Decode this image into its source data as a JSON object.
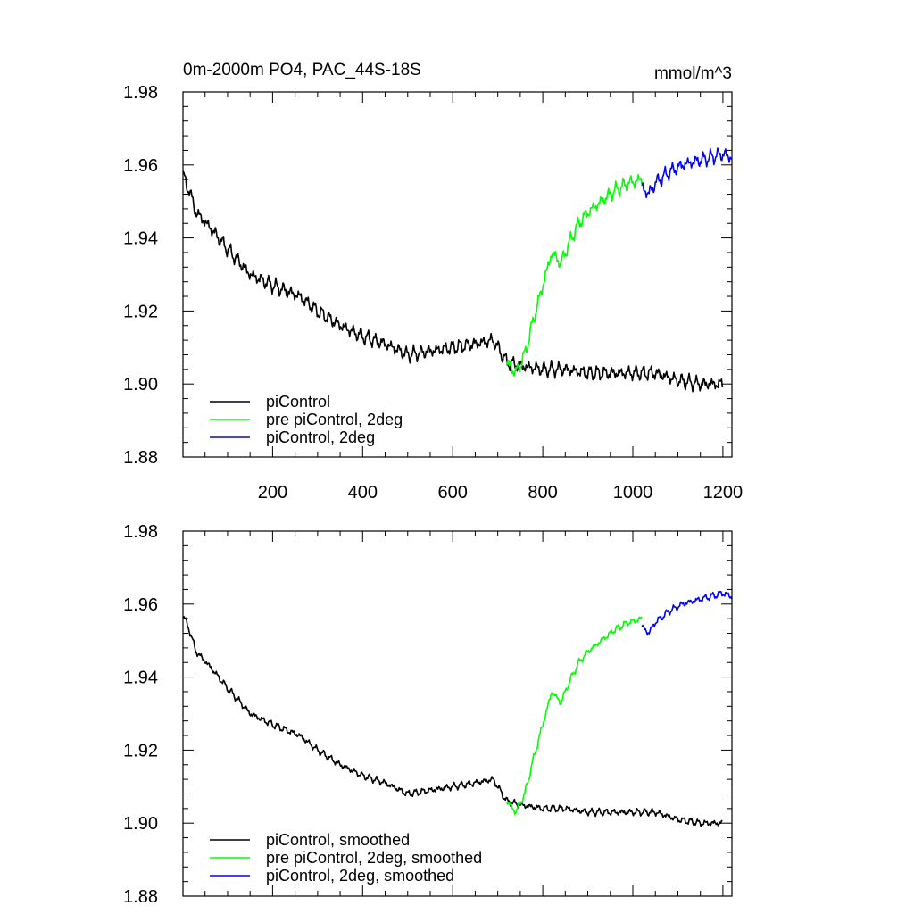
{
  "chart_data": [
    {
      "type": "line",
      "title": "0m-2000m PO4, PAC_44S-18S",
      "units": "mmol/m^3",
      "xlabel": "",
      "ylabel": "",
      "xlim": [
        1,
        1220
      ],
      "ylim": [
        1.88,
        1.98
      ],
      "x_ticks": [
        200,
        400,
        600,
        800,
        1000,
        1200
      ],
      "x_tick_labels": [
        "200",
        "400",
        "600",
        "800",
        "1000",
        "1200"
      ],
      "y_ticks": [
        1.88,
        1.9,
        1.92,
        1.94,
        1.96,
        1.98
      ],
      "y_tick_labels": [
        "1.88",
        "1.90",
        "1.92",
        "1.94",
        "1.96",
        "1.98"
      ],
      "legend_position": "bottom-left",
      "noise_amplitude": 0.0025,
      "series": [
        {
          "name": "piControl",
          "color": "#000000",
          "x_range": [
            1,
            1200
          ],
          "anchors": [
            [
              1,
              1.957
            ],
            [
              15,
              1.953
            ],
            [
              30,
              1.947
            ],
            [
              60,
              1.943
            ],
            [
              100,
              1.937
            ],
            [
              150,
              1.93
            ],
            [
              200,
              1.927
            ],
            [
              260,
              1.924
            ],
            [
              300,
              1.92
            ],
            [
              350,
              1.916
            ],
            [
              400,
              1.913
            ],
            [
              450,
              1.911
            ],
            [
              500,
              1.908
            ],
            [
              550,
              1.909
            ],
            [
              600,
              1.91
            ],
            [
              650,
              1.911
            ],
            [
              690,
              1.912
            ],
            [
              720,
              1.906
            ],
            [
              750,
              1.905
            ],
            [
              800,
              1.904
            ],
            [
              850,
              1.904
            ],
            [
              900,
              1.903
            ],
            [
              950,
              1.903
            ],
            [
              1000,
              1.903
            ],
            [
              1050,
              1.903
            ],
            [
              1100,
              1.901
            ],
            [
              1150,
              1.9
            ],
            [
              1200,
              1.9
            ]
          ]
        },
        {
          "name": "pre piControl, 2deg",
          "color": "#00ff00",
          "x_range": [
            720,
            1020
          ],
          "anchors": [
            [
              720,
              1.906
            ],
            [
              740,
              1.903
            ],
            [
              760,
              1.908
            ],
            [
              780,
              1.918
            ],
            [
              800,
              1.927
            ],
            [
              820,
              1.936
            ],
            [
              840,
              1.933
            ],
            [
              860,
              1.939
            ],
            [
              880,
              1.944
            ],
            [
              900,
              1.947
            ],
            [
              930,
              1.95
            ],
            [
              960,
              1.953
            ],
            [
              990,
              1.955
            ],
            [
              1020,
              1.956
            ]
          ]
        },
        {
          "name": "piControl, 2deg",
          "color": "#0000ff",
          "x_range": [
            1020,
            1220
          ],
          "anchors": [
            [
              1020,
              1.954
            ],
            [
              1035,
              1.952
            ],
            [
              1050,
              1.955
            ],
            [
              1080,
              1.958
            ],
            [
              1110,
              1.96
            ],
            [
              1140,
              1.961
            ],
            [
              1170,
              1.962
            ],
            [
              1200,
              1.963
            ],
            [
              1220,
              1.962
            ]
          ]
        }
      ]
    },
    {
      "type": "line",
      "title": "",
      "xlabel": "",
      "ylabel": "",
      "xlim": [
        1,
        1220
      ],
      "ylim": [
        1.88,
        1.98
      ],
      "x_ticks": [
        200,
        400,
        600,
        800,
        1000,
        1200
      ],
      "y_ticks": [
        1.88,
        1.9,
        1.92,
        1.94,
        1.96,
        1.98
      ],
      "y_tick_labels": [
        "1.88",
        "1.90",
        "1.92",
        "1.94",
        "1.96",
        "1.98"
      ],
      "legend_position": "bottom-left",
      "noise_amplitude": 0.0012,
      "series": [
        {
          "name": "piControl, smoothed",
          "color": "#000000",
          "x_range": [
            1,
            1200
          ],
          "anchors": [
            [
              1,
              1.957
            ],
            [
              15,
              1.953
            ],
            [
              30,
              1.947
            ],
            [
              60,
              1.943
            ],
            [
              100,
              1.937
            ],
            [
              150,
              1.93
            ],
            [
              200,
              1.927
            ],
            [
              260,
              1.924
            ],
            [
              300,
              1.92
            ],
            [
              350,
              1.916
            ],
            [
              400,
              1.913
            ],
            [
              450,
              1.911
            ],
            [
              500,
              1.908
            ],
            [
              550,
              1.909
            ],
            [
              600,
              1.91
            ],
            [
              650,
              1.911
            ],
            [
              690,
              1.912
            ],
            [
              720,
              1.906
            ],
            [
              750,
              1.905
            ],
            [
              800,
              1.904
            ],
            [
              850,
              1.904
            ],
            [
              900,
              1.903
            ],
            [
              950,
              1.903
            ],
            [
              1000,
              1.903
            ],
            [
              1050,
              1.903
            ],
            [
              1100,
              1.901
            ],
            [
              1150,
              1.9
            ],
            [
              1200,
              1.9
            ]
          ]
        },
        {
          "name": "pre piControl, 2deg, smoothed",
          "color": "#00ff00",
          "x_range": [
            720,
            1020
          ],
          "anchors": [
            [
              720,
              1.906
            ],
            [
              740,
              1.903
            ],
            [
              760,
              1.908
            ],
            [
              780,
              1.918
            ],
            [
              800,
              1.927
            ],
            [
              820,
              1.936
            ],
            [
              840,
              1.933
            ],
            [
              860,
              1.939
            ],
            [
              880,
              1.944
            ],
            [
              900,
              1.947
            ],
            [
              930,
              1.95
            ],
            [
              960,
              1.953
            ],
            [
              990,
              1.955
            ],
            [
              1020,
              1.956
            ]
          ]
        },
        {
          "name": "piControl, 2deg, smoothed",
          "color": "#0000ff",
          "x_range": [
            1020,
            1220
          ],
          "anchors": [
            [
              1020,
              1.954
            ],
            [
              1035,
              1.952
            ],
            [
              1050,
              1.955
            ],
            [
              1080,
              1.958
            ],
            [
              1110,
              1.96
            ],
            [
              1140,
              1.961
            ],
            [
              1170,
              1.962
            ],
            [
              1200,
              1.963
            ],
            [
              1220,
              1.962
            ]
          ]
        }
      ]
    }
  ]
}
